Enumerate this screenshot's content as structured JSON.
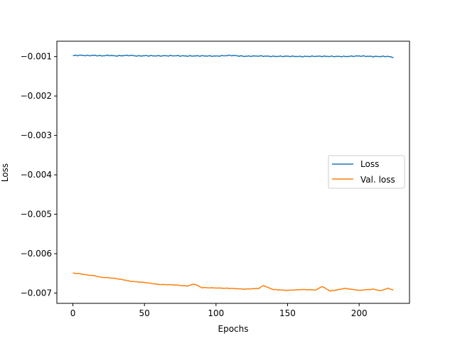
{
  "chart_data": {
    "type": "line",
    "title": "",
    "xlabel": "Epochs",
    "ylabel": "Loss",
    "xlim": [
      -11.2,
      235.2
    ],
    "ylim": [
      -0.00726,
      -0.00061
    ],
    "xticks": [
      0,
      50,
      100,
      150,
      200
    ],
    "xtick_labels": [
      "0",
      "50",
      "100",
      "150",
      "200"
    ],
    "yticks": [
      -0.001,
      -0.002,
      -0.003,
      -0.004,
      -0.005,
      -0.006,
      -0.007
    ],
    "ytick_labels": [
      "−0.001",
      "−0.002",
      "−0.003",
      "−0.004",
      "−0.005",
      "−0.006",
      "−0.007"
    ],
    "grid": false,
    "legend_position": "center-right",
    "series": [
      {
        "name": "Loss",
        "color": "#1f77b4",
        "keypoints": [
          [
            0,
            -0.000975
          ],
          [
            5,
            -0.000968
          ],
          [
            10,
            -0.000975
          ],
          [
            15,
            -0.00097
          ],
          [
            20,
            -0.00098
          ],
          [
            25,
            -0.00097
          ],
          [
            30,
            -0.000982
          ],
          [
            35,
            -0.000975
          ],
          [
            40,
            -0.00097
          ],
          [
            45,
            -0.000985
          ],
          [
            50,
            -0.000978
          ],
          [
            60,
            -0.000982
          ],
          [
            70,
            -0.000978
          ],
          [
            80,
            -0.000985
          ],
          [
            90,
            -0.000982
          ],
          [
            100,
            -0.000988
          ],
          [
            110,
            -0.00097
          ],
          [
            120,
            -0.000992
          ],
          [
            130,
            -0.000985
          ],
          [
            140,
            -0.000995
          ],
          [
            150,
            -0.000992
          ],
          [
            160,
            -0.000998
          ],
          [
            170,
            -0.000992
          ],
          [
            180,
            -0.000995
          ],
          [
            190,
            -0.000998
          ],
          [
            200,
            -0.000985
          ],
          [
            210,
            -0.000998
          ],
          [
            220,
            -0.000995
          ],
          [
            224,
            -0.00102
          ]
        ],
        "noise": 1.2e-05
      },
      {
        "name": "Val. loss",
        "color": "#ff7f0e",
        "keypoints": [
          [
            0,
            -0.00649
          ],
          [
            5,
            -0.00651
          ],
          [
            10,
            -0.00654
          ],
          [
            15,
            -0.00656
          ],
          [
            20,
            -0.0066
          ],
          [
            25,
            -0.00661
          ],
          [
            30,
            -0.00663
          ],
          [
            35,
            -0.00666
          ],
          [
            40,
            -0.0067
          ],
          [
            50,
            -0.00673
          ],
          [
            60,
            -0.00678
          ],
          [
            70,
            -0.00679
          ],
          [
            80,
            -0.00682
          ],
          [
            85,
            -0.00677
          ],
          [
            90,
            -0.00686
          ],
          [
            100,
            -0.00687
          ],
          [
            110,
            -0.00688
          ],
          [
            120,
            -0.0069
          ],
          [
            130,
            -0.00688
          ],
          [
            133,
            -0.00681
          ],
          [
            140,
            -0.00691
          ],
          [
            150,
            -0.00693
          ],
          [
            160,
            -0.00691
          ],
          [
            170,
            -0.00692
          ],
          [
            174,
            -0.00683
          ],
          [
            180,
            -0.00695
          ],
          [
            190,
            -0.00688
          ],
          [
            200,
            -0.00693
          ],
          [
            210,
            -0.0069
          ],
          [
            215,
            -0.00694
          ],
          [
            220,
            -0.00688
          ],
          [
            224,
            -0.00692
          ]
        ],
        "noise": 6e-06
      }
    ]
  }
}
